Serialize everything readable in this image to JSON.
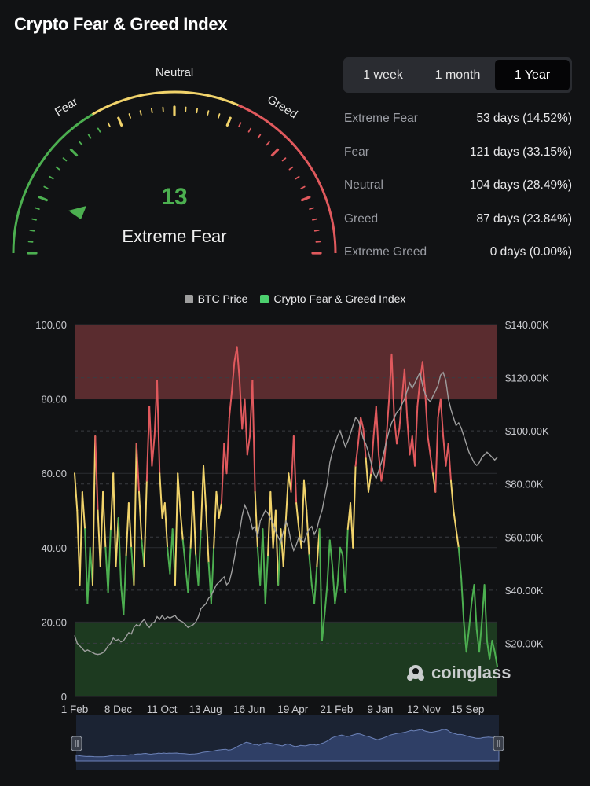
{
  "title": "Crypto Fear & Greed Index",
  "gauge": {
    "value": "13",
    "status": "Extreme Fear",
    "value_fraction": 0.13,
    "labels": {
      "neutral": "Neutral",
      "fear": "Fear",
      "greed": "Greed"
    },
    "colors": {
      "fear": "#4caf50",
      "neutral": "#f1d36b",
      "greed": "#e0595d"
    }
  },
  "tabs": [
    {
      "label": "1 week",
      "active": false
    },
    {
      "label": "1 month",
      "active": false
    },
    {
      "label": "1 Year",
      "active": true
    }
  ],
  "stats": [
    {
      "label": "Extreme Fear",
      "value": "53 days (14.52%)"
    },
    {
      "label": "Fear",
      "value": "121 days (33.15%)"
    },
    {
      "label": "Neutral",
      "value": "104 days (28.49%)"
    },
    {
      "label": "Greed",
      "value": "87 days (23.84%)"
    },
    {
      "label": "Extreme Greed",
      "value": "0 days (0.00%)"
    }
  ],
  "legend": [
    {
      "label": "BTC Price",
      "color": "#9e9e9e"
    },
    {
      "label": "Crypto Fear & Greed Index",
      "color": "#4ccf6e"
    }
  ],
  "watermark": "coinglass",
  "chart_data": {
    "type": "line",
    "x_ticks": [
      "1 Feb",
      "8 Dec",
      "11 Oct",
      "13 Aug",
      "16 Jun",
      "19 Apr",
      "21 Feb",
      "9 Jan",
      "12 Nov",
      "15 Sep"
    ],
    "left_axis": {
      "ticks": [
        "0",
        "20.00",
        "40.00",
        "60.00",
        "80.00",
        "100.00"
      ],
      "range": [
        0,
        100
      ]
    },
    "right_axis": {
      "ticks": [
        "$20.00K",
        "$40.00K",
        "$60.00K",
        "$80.00K",
        "$100.00K",
        "$120.00K",
        "$140.00K"
      ],
      "range": [
        0,
        140000
      ]
    },
    "bands": [
      {
        "from": 0,
        "to": 20,
        "color": "#1d3a20"
      },
      {
        "from": 80,
        "to": 100,
        "color": "#5a2c2f"
      }
    ],
    "zone_colors": {
      "extreme_fear": "#4caf50",
      "fear": "#4caf50",
      "neutral": "#f1d36b",
      "greed": "#e0595d"
    },
    "series": [
      {
        "name": "Crypto Fear & Greed Index",
        "values": [
          60,
          50,
          30,
          55,
          45,
          25,
          40,
          30,
          70,
          50,
          35,
          55,
          40,
          28,
          45,
          60,
          35,
          48,
          30,
          22,
          38,
          52,
          40,
          30,
          68,
          55,
          42,
          35,
          58,
          78,
          62,
          70,
          85,
          60,
          48,
          52,
          40,
          33,
          45,
          30,
          60,
          50,
          42,
          35,
          28,
          40,
          55,
          38,
          30,
          45,
          62,
          50,
          36,
          25,
          40,
          55,
          48,
          52,
          68,
          60,
          75,
          82,
          90,
          94,
          85,
          72,
          80,
          65,
          70,
          85,
          55,
          40,
          30,
          45,
          25,
          38,
          55,
          40,
          50,
          30,
          45,
          35,
          48,
          60,
          55,
          70,
          52,
          45,
          40,
          58,
          50,
          38,
          30,
          25,
          35,
          45,
          15,
          22,
          30,
          42,
          35,
          25,
          30,
          40,
          38,
          28,
          45,
          52,
          40,
          62,
          68,
          75,
          72,
          64,
          55,
          60,
          70,
          78,
          65,
          58,
          62,
          70,
          80,
          92,
          75,
          68,
          72,
          80,
          88,
          75,
          65,
          70,
          62,
          78,
          85,
          90,
          82,
          70,
          65,
          60,
          55,
          75,
          80,
          70,
          62,
          68,
          58,
          50,
          45,
          40,
          32,
          20,
          12,
          18,
          25,
          30,
          18,
          12,
          20,
          30,
          15,
          10,
          15,
          12,
          8
        ]
      },
      {
        "name": "BTC Price",
        "values": [
          23000,
          20000,
          19000,
          18000,
          17000,
          17500,
          17000,
          16500,
          16000,
          15800,
          16000,
          16500,
          17500,
          19000,
          20000,
          22000,
          21000,
          21500,
          20500,
          21000,
          22500,
          24000,
          23500,
          26000,
          27000,
          26500,
          28000,
          29000,
          27000,
          26000,
          27500,
          28000,
          30000,
          29000,
          30500,
          29000,
          30000,
          29500,
          30000,
          30500,
          29000,
          28500,
          28000,
          27000,
          26000,
          26500,
          27000,
          28000,
          30000,
          33000,
          34000,
          35000,
          37000,
          38000,
          40000,
          42000,
          43000,
          44000,
          45000,
          42000,
          43000,
          47000,
          52000,
          58000,
          62000,
          68000,
          72000,
          70000,
          67000,
          63000,
          64000,
          60000,
          66000,
          68000,
          70000,
          69000,
          67000,
          65000,
          62000,
          60000,
          58000,
          62000,
          66000,
          63000,
          58000,
          55000,
          57000,
          60000,
          59000,
          58000,
          61000,
          63000,
          64000,
          61000,
          63000,
          67000,
          70000,
          75000,
          80000,
          88000,
          92000,
          95000,
          98000,
          100000,
          97000,
          94000,
          96000,
          99000,
          102000,
          105000,
          104000,
          101000,
          97000,
          95000,
          92000,
          88000,
          84000,
          82000,
          85000,
          88000,
          92000,
          96000,
          100000,
          103000,
          105000,
          107000,
          108000,
          110000,
          112000,
          115000,
          118000,
          116000,
          118000,
          120000,
          122000,
          117000,
          114000,
          112000,
          111000,
          113000,
          115000,
          117000,
          121000,
          122000,
          119000,
          112000,
          108000,
          105000,
          102000,
          103000,
          101000,
          98000,
          95000,
          92000,
          90000,
          88000,
          87000,
          88000,
          90000,
          91000,
          92000,
          91000,
          90000,
          89000,
          90000
        ]
      }
    ]
  }
}
